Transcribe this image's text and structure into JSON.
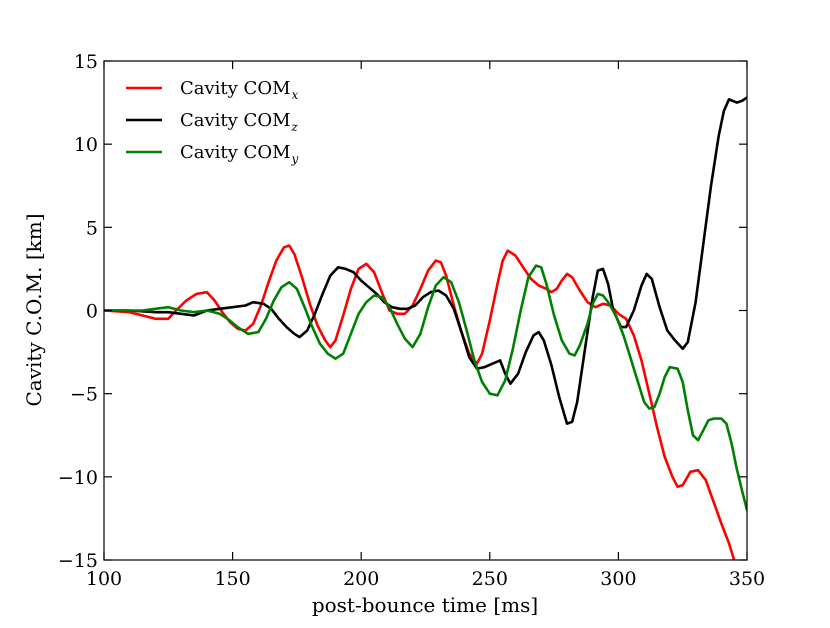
{
  "chart_data": {
    "type": "line",
    "title": "",
    "xlabel": "post-bounce time [ms]",
    "ylabel": "Cavity C.O.M. [km]",
    "xlim": [
      100,
      350
    ],
    "ylim": [
      -15,
      15
    ],
    "xticks": [
      100,
      150,
      200,
      250,
      300,
      350
    ],
    "yticks": [
      -15,
      -10,
      -5,
      0,
      5,
      10,
      15
    ],
    "xtick_labels": [
      "100",
      "150",
      "200",
      "250",
      "300",
      "350"
    ],
    "ytick_labels": [
      "−15",
      "−10",
      "−5",
      "0",
      "5",
      "10",
      "15"
    ],
    "grid": false,
    "legend_position": "top-left",
    "series": [
      {
        "name": "Cavity COM",
        "subscript": "x",
        "color": "#ff0000",
        "points": [
          [
            100,
            0
          ],
          [
            110,
            -0.1
          ],
          [
            115,
            -0.3
          ],
          [
            120,
            -0.5
          ],
          [
            125,
            -0.5
          ],
          [
            128,
            0
          ],
          [
            132,
            0.6
          ],
          [
            136,
            1.0
          ],
          [
            140,
            1.1
          ],
          [
            143,
            0.6
          ],
          [
            146,
            -0.1
          ],
          [
            149,
            -0.7
          ],
          [
            152,
            -1.1
          ],
          [
            155,
            -1.2
          ],
          [
            158,
            -0.8
          ],
          [
            161,
            0.3
          ],
          [
            164,
            1.7
          ],
          [
            167,
            3.0
          ],
          [
            170,
            3.8
          ],
          [
            172,
            3.9
          ],
          [
            174,
            3.4
          ],
          [
            177,
            2.0
          ],
          [
            180,
            0.4
          ],
          [
            183,
            -0.9
          ],
          [
            186,
            -1.8
          ],
          [
            188,
            -2.2
          ],
          [
            190,
            -1.8
          ],
          [
            193,
            -0.3
          ],
          [
            196,
            1.3
          ],
          [
            199,
            2.5
          ],
          [
            202,
            2.8
          ],
          [
            205,
            2.3
          ],
          [
            208,
            1.1
          ],
          [
            211,
            0
          ],
          [
            214,
            -0.2
          ],
          [
            217,
            -0.2
          ],
          [
            220,
            0.3
          ],
          [
            223,
            1.3
          ],
          [
            226,
            2.4
          ],
          [
            229,
            3.0
          ],
          [
            231,
            2.9
          ],
          [
            233,
            2.1
          ],
          [
            236,
            0.3
          ],
          [
            239,
            -1.3
          ],
          [
            242,
            -2.6
          ],
          [
            245,
            -3.2
          ],
          [
            247,
            -2.6
          ],
          [
            250,
            -0.6
          ],
          [
            253,
            1.6
          ],
          [
            255,
            3.0
          ],
          [
            257,
            3.6
          ],
          [
            260,
            3.3
          ],
          [
            263,
            2.6
          ],
          [
            266,
            1.9
          ],
          [
            269,
            1.5
          ],
          [
            272,
            1.3
          ],
          [
            274,
            1.1
          ],
          [
            276,
            1.3
          ],
          [
            278,
            1.8
          ],
          [
            280,
            2.2
          ],
          [
            282,
            2.0
          ],
          [
            285,
            1.2
          ],
          [
            288,
            0.5
          ],
          [
            291,
            0.2
          ],
          [
            294,
            0.4
          ],
          [
            297,
            0.3
          ],
          [
            300,
            -0.2
          ],
          [
            303,
            -0.5
          ],
          [
            306,
            -1.5
          ],
          [
            309,
            -3.0
          ],
          [
            312,
            -5.0
          ],
          [
            315,
            -7.0
          ],
          [
            318,
            -8.8
          ],
          [
            321,
            -10.0
          ],
          [
            323,
            -10.6
          ],
          [
            325,
            -10.5
          ],
          [
            328,
            -9.7
          ],
          [
            331,
            -9.6
          ],
          [
            334,
            -10.2
          ],
          [
            337,
            -11.5
          ],
          [
            340,
            -12.8
          ],
          [
            343,
            -14.0
          ],
          [
            345,
            -15.0
          ]
        ]
      },
      {
        "name": "Cavity COM",
        "subscript": "z",
        "color": "#000000",
        "points": [
          [
            100,
            0
          ],
          [
            110,
            0
          ],
          [
            120,
            -0.1
          ],
          [
            125,
            -0.1
          ],
          [
            130,
            -0.2
          ],
          [
            135,
            -0.3
          ],
          [
            140,
            0
          ],
          [
            145,
            0.1
          ],
          [
            150,
            0.2
          ],
          [
            155,
            0.3
          ],
          [
            158,
            0.5
          ],
          [
            162,
            0.4
          ],
          [
            165,
            0.1
          ],
          [
            168,
            -0.5
          ],
          [
            171,
            -1.0
          ],
          [
            174,
            -1.4
          ],
          [
            176,
            -1.6
          ],
          [
            179,
            -1.2
          ],
          [
            182,
            -0.2
          ],
          [
            185,
            1.0
          ],
          [
            188,
            2.1
          ],
          [
            191,
            2.6
          ],
          [
            194,
            2.5
          ],
          [
            197,
            2.3
          ],
          [
            200,
            1.8
          ],
          [
            203,
            1.4
          ],
          [
            206,
            1.0
          ],
          [
            209,
            0.5
          ],
          [
            212,
            0.2
          ],
          [
            215,
            0.1
          ],
          [
            218,
            0.1
          ],
          [
            221,
            0.3
          ],
          [
            224,
            0.8
          ],
          [
            227,
            1.1
          ],
          [
            230,
            1.2
          ],
          [
            233,
            0.9
          ],
          [
            236,
            0.1
          ],
          [
            239,
            -1.3
          ],
          [
            242,
            -2.8
          ],
          [
            245,
            -3.5
          ],
          [
            248,
            -3.4
          ],
          [
            251,
            -3.2
          ],
          [
            254,
            -3.0
          ],
          [
            256,
            -3.8
          ],
          [
            258,
            -4.4
          ],
          [
            261,
            -3.8
          ],
          [
            264,
            -2.5
          ],
          [
            267,
            -1.5
          ],
          [
            269,
            -1.3
          ],
          [
            271,
            -1.8
          ],
          [
            274,
            -3.3
          ],
          [
            277,
            -5.2
          ],
          [
            280,
            -6.8
          ],
          [
            282,
            -6.7
          ],
          [
            284,
            -5.5
          ],
          [
            287,
            -2.3
          ],
          [
            290,
            0.8
          ],
          [
            292,
            2.4
          ],
          [
            294,
            2.5
          ],
          [
            296,
            1.6
          ],
          [
            298,
            0
          ],
          [
            301,
            -1.0
          ],
          [
            303,
            -1.0
          ],
          [
            306,
            0
          ],
          [
            309,
            1.5
          ],
          [
            311,
            2.2
          ],
          [
            313,
            1.9
          ],
          [
            316,
            0.2
          ],
          [
            319,
            -1.2
          ],
          [
            322,
            -1.8
          ],
          [
            325,
            -2.3
          ],
          [
            327,
            -1.9
          ],
          [
            330,
            0.5
          ],
          [
            333,
            4.0
          ],
          [
            336,
            7.5
          ],
          [
            339,
            10.5
          ],
          [
            341,
            12.0
          ],
          [
            343,
            12.7
          ],
          [
            346,
            12.5
          ],
          [
            348,
            12.6
          ],
          [
            350,
            12.8
          ]
        ]
      },
      {
        "name": "Cavity COM",
        "subscript": "y",
        "color": "#008000",
        "points": [
          [
            100,
            0
          ],
          [
            110,
            0
          ],
          [
            115,
            0
          ],
          [
            120,
            0.1
          ],
          [
            125,
            0.2
          ],
          [
            130,
            0
          ],
          [
            135,
            -0.1
          ],
          [
            140,
            0
          ],
          [
            145,
            -0.2
          ],
          [
            148,
            -0.5
          ],
          [
            152,
            -1.0
          ],
          [
            156,
            -1.4
          ],
          [
            160,
            -1.3
          ],
          [
            163,
            -0.5
          ],
          [
            166,
            0.6
          ],
          [
            169,
            1.4
          ],
          [
            172,
            1.7
          ],
          [
            175,
            1.3
          ],
          [
            178,
            0.2
          ],
          [
            181,
            -1.0
          ],
          [
            184,
            -2.0
          ],
          [
            187,
            -2.6
          ],
          [
            190,
            -2.9
          ],
          [
            193,
            -2.6
          ],
          [
            196,
            -1.4
          ],
          [
            199,
            -0.2
          ],
          [
            202,
            0.5
          ],
          [
            205,
            0.9
          ],
          [
            208,
            0.8
          ],
          [
            211,
            0.2
          ],
          [
            214,
            -0.8
          ],
          [
            217,
            -1.7
          ],
          [
            220,
            -2.2
          ],
          [
            223,
            -1.4
          ],
          [
            226,
            0.2
          ],
          [
            229,
            1.5
          ],
          [
            232,
            2.0
          ],
          [
            235,
            1.7
          ],
          [
            238,
            0.5
          ],
          [
            241,
            -1.2
          ],
          [
            244,
            -3.0
          ],
          [
            247,
            -4.3
          ],
          [
            250,
            -5.0
          ],
          [
            253,
            -5.1
          ],
          [
            256,
            -4.2
          ],
          [
            259,
            -2.3
          ],
          [
            262,
            0
          ],
          [
            265,
            2.0
          ],
          [
            268,
            2.7
          ],
          [
            270,
            2.6
          ],
          [
            272,
            1.6
          ],
          [
            275,
            -0.3
          ],
          [
            278,
            -1.8
          ],
          [
            281,
            -2.6
          ],
          [
            283,
            -2.7
          ],
          [
            285,
            -2.1
          ],
          [
            288,
            -0.8
          ],
          [
            290,
            0.4
          ],
          [
            292,
            1.0
          ],
          [
            294,
            0.9
          ],
          [
            296,
            0.5
          ],
          [
            299,
            -0.3
          ],
          [
            302,
            -1.5
          ],
          [
            305,
            -3.0
          ],
          [
            308,
            -4.5
          ],
          [
            310,
            -5.5
          ],
          [
            312,
            -5.9
          ],
          [
            314,
            -5.8
          ],
          [
            316,
            -5.0
          ],
          [
            318,
            -4.0
          ],
          [
            320,
            -3.4
          ],
          [
            323,
            -3.5
          ],
          [
            325,
            -4.3
          ],
          [
            327,
            -6.0
          ],
          [
            329,
            -7.5
          ],
          [
            331,
            -7.8
          ],
          [
            333,
            -7.2
          ],
          [
            335,
            -6.6
          ],
          [
            337,
            -6.5
          ],
          [
            340,
            -6.5
          ],
          [
            342,
            -6.8
          ],
          [
            344,
            -8.0
          ],
          [
            346,
            -9.5
          ],
          [
            348,
            -10.8
          ],
          [
            350,
            -12.0
          ]
        ]
      }
    ]
  }
}
